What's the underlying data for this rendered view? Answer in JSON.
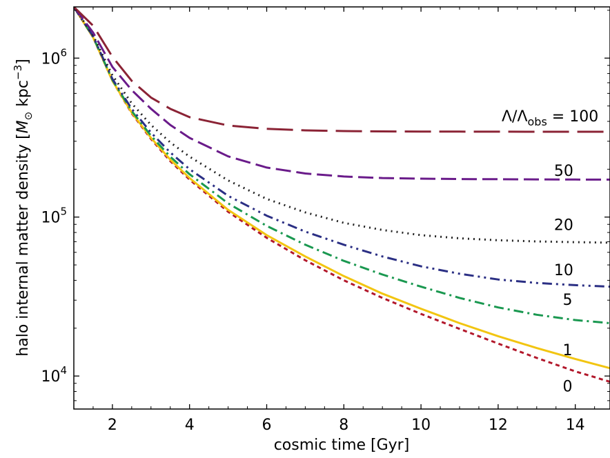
{
  "chart_data": {
    "type": "line",
    "xlabel": "cosmic time [Gyr]",
    "ylabel_parts": {
      "before": "halo internal matter density [",
      "unit_symbol": "M",
      "unit_subscript": "⊙",
      "unit_rest": " kpc",
      "unit_exponent": "−3",
      "after": "]"
    },
    "xlim": [
      1.0,
      14.9
    ],
    "ylim": [
      6200,
      2100000
    ],
    "yscale": "log",
    "x_ticks": [
      2,
      4,
      6,
      8,
      10,
      12,
      14
    ],
    "x_tick_labels": [
      "2",
      "4",
      "6",
      "8",
      "10",
      "12",
      "14"
    ],
    "y_ticks": [
      10000,
      100000,
      1000000
    ],
    "y_tick_labels": [
      {
        "base": "10",
        "exp": "4"
      },
      {
        "base": "10",
        "exp": "5"
      },
      {
        "base": "10",
        "exp": "6"
      }
    ],
    "legend_title": {
      "prefix": "Λ/Λ",
      "subscript": "obs",
      "suffix": " = 100"
    },
    "series": [
      {
        "label": "0",
        "color": "#b2182b",
        "dash": "6,5",
        "x": [
          1.0,
          1.5,
          2.0,
          2.5,
          3,
          3.5,
          4,
          5,
          6,
          7,
          8,
          9,
          10,
          11,
          12,
          13,
          14,
          14.9
        ],
        "y": [
          2100000,
          1350000,
          720000,
          450000,
          310000,
          225000,
          172000,
          108000,
          74000,
          53500,
          40000,
          31000,
          24600,
          19800,
          16000,
          13000,
          10700,
          9200
        ]
      },
      {
        "label": "1",
        "color": "#f2c511",
        "dash": "",
        "x": [
          1.0,
          1.5,
          2.0,
          2.5,
          3,
          3.5,
          4,
          5,
          6,
          7,
          8,
          9,
          10,
          11,
          12,
          13,
          14,
          14.9
        ],
        "y": [
          2100000,
          1350000,
          720000,
          455000,
          315000,
          230000,
          176000,
          111000,
          77000,
          56500,
          42500,
          33000,
          26500,
          21500,
          17800,
          15000,
          12800,
          11200
        ]
      },
      {
        "label": "5",
        "color": "#1a9850",
        "dash": "14,6,3,6",
        "x": [
          1.0,
          1.5,
          2.0,
          2.5,
          3,
          3.5,
          4,
          5,
          6,
          7,
          8,
          9,
          10,
          11,
          12,
          13,
          14,
          14.9
        ],
        "y": [
          2100000,
          1360000,
          730000,
          465000,
          325000,
          240000,
          186000,
          122000,
          88000,
          67000,
          53000,
          43500,
          36500,
          31000,
          27000,
          24300,
          22500,
          21500
        ]
      },
      {
        "label": "10",
        "color": "#2b2f84",
        "dash": "14,6,3,6,3,6",
        "x": [
          1.0,
          1.5,
          2.0,
          2.5,
          3,
          3.5,
          4,
          5,
          6,
          7,
          8,
          9,
          10,
          11,
          12,
          13,
          14,
          14.9
        ],
        "y": [
          2100000,
          1370000,
          740000,
          480000,
          340000,
          255000,
          200000,
          136000,
          102000,
          81000,
          67000,
          56500,
          49000,
          44000,
          40500,
          38500,
          37300,
          36500
        ]
      },
      {
        "label": "20",
        "color": "#222222",
        "dash": "2,6",
        "x": [
          1.0,
          1.5,
          2.0,
          2.5,
          3,
          3.5,
          4,
          5,
          6,
          7,
          8,
          9,
          10,
          11,
          12,
          13,
          14,
          14.9
        ],
        "y": [
          2100000,
          1390000,
          780000,
          520000,
          380000,
          295000,
          240000,
          170000,
          130000,
          107000,
          92000,
          83000,
          77000,
          73500,
          71500,
          70300,
          69500,
          69000
        ]
      },
      {
        "label": "50",
        "color": "#6a1b8a",
        "dash": "22,8",
        "x": [
          1.0,
          1.5,
          2.0,
          2.5,
          3,
          3.5,
          4,
          5,
          6,
          7,
          8,
          9,
          10,
          11,
          12,
          13,
          14,
          14.9
        ],
        "y": [
          2100000,
          1450000,
          880000,
          630000,
          480000,
          380000,
          315000,
          241000,
          205000,
          188000,
          180000,
          176000,
          174500,
          173500,
          173000,
          172500,
          172300,
          172000
        ]
      },
      {
        "label": "100",
        "color": "#8b2335",
        "dash": "38,12",
        "x": [
          1.0,
          1.5,
          2.0,
          2.5,
          3,
          3.5,
          4,
          5,
          6,
          7,
          8,
          9,
          10,
          11,
          12,
          13,
          14,
          14.9
        ],
        "y": [
          2100000,
          1600000,
          1020000,
          720000,
          565000,
          480000,
          425000,
          377000,
          359000,
          351000,
          347500,
          346000,
          345200,
          344800,
          344500,
          344300,
          344200,
          344100
        ]
      }
    ],
    "label_positions": [
      {
        "label": "0",
        "x": 13.8,
        "y": 8000
      },
      {
        "label": "1",
        "x": 13.8,
        "y": 13500
      },
      {
        "label": "5",
        "x": 13.8,
        "y": 28000
      },
      {
        "label": "10",
        "x": 13.7,
        "y": 43000
      },
      {
        "label": "20",
        "x": 13.7,
        "y": 83000
      },
      {
        "label": "50",
        "x": 13.7,
        "y": 182000
      }
    ],
    "legend_title_position": {
      "x": 12.5,
      "y": 400000
    },
    "grid": false
  }
}
